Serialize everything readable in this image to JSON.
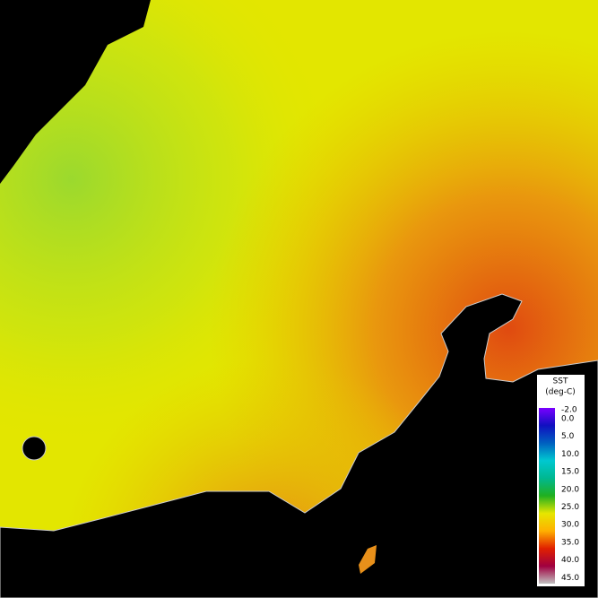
{
  "legend": {
    "title": "SST",
    "unit": "(deg-C)",
    "labels": [
      "-2.0",
      "0.0",
      "5.0",
      "10.0",
      "15.0",
      "20.0",
      "25.0",
      "30.0",
      "35.0",
      "40.0",
      "45.0"
    ]
  }
}
